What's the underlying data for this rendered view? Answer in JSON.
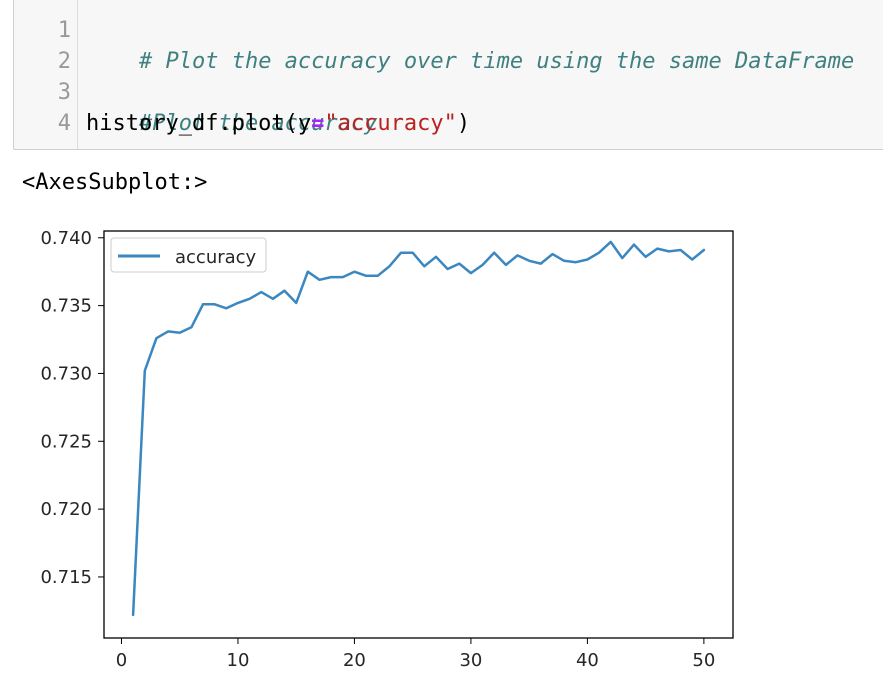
{
  "cell": {
    "lines": [
      {
        "num": "1",
        "comment": "# Plot the accuracy over time using the same DataFrame"
      },
      {
        "num": "2"
      },
      {
        "num": "3",
        "comment": "#Plot the accuracy"
      },
      {
        "num": "4",
        "code_prefix": "history_df.plot(y",
        "code_op": "=",
        "code_string": "\"accuracy\"",
        "code_suffix": ")"
      }
    ]
  },
  "output": {
    "text": "<AxesSubplot:>"
  },
  "chart_data": {
    "type": "line",
    "title": "",
    "xlabel": "",
    "ylabel": "",
    "xlim": [
      -1.5,
      52.5
    ],
    "ylim": [
      0.7105,
      0.7405
    ],
    "x_ticks": [
      0,
      10,
      20,
      30,
      40,
      50
    ],
    "x_tick_labels": [
      "0",
      "10",
      "20",
      "30",
      "40",
      "50"
    ],
    "y_ticks": [
      0.715,
      0.72,
      0.725,
      0.73,
      0.735,
      0.74
    ],
    "y_tick_labels": [
      "0.715",
      "0.720",
      "0.725",
      "0.730",
      "0.735",
      "0.740"
    ],
    "grid": false,
    "legend_position": "upper-left",
    "series": [
      {
        "name": "accuracy",
        "color": "#3b87c0",
        "x": [
          1,
          2,
          3,
          4,
          5,
          6,
          7,
          8,
          9,
          10,
          11,
          12,
          13,
          14,
          15,
          16,
          17,
          18,
          19,
          20,
          21,
          22,
          23,
          24,
          25,
          26,
          27,
          28,
          29,
          30,
          31,
          32,
          33,
          34,
          35,
          36,
          37,
          38,
          39,
          40,
          41,
          42,
          43,
          44,
          45,
          46,
          47,
          48,
          49,
          50
        ],
        "y": [
          0.7122,
          0.7302,
          0.7326,
          0.7331,
          0.733,
          0.7334,
          0.7351,
          0.7351,
          0.7348,
          0.7352,
          0.7355,
          0.736,
          0.7355,
          0.7361,
          0.7352,
          0.7375,
          0.7369,
          0.7371,
          0.7371,
          0.7375,
          0.7372,
          0.7372,
          0.7379,
          0.7389,
          0.7389,
          0.7379,
          0.7386,
          0.7377,
          0.7381,
          0.7374,
          0.738,
          0.7389,
          0.738,
          0.7387,
          0.7383,
          0.7381,
          0.7388,
          0.7383,
          0.7382,
          0.7384,
          0.7389,
          0.7397,
          0.7385,
          0.7395,
          0.7386,
          0.7392,
          0.739,
          0.7391,
          0.7384,
          0.7391
        ]
      }
    ]
  }
}
